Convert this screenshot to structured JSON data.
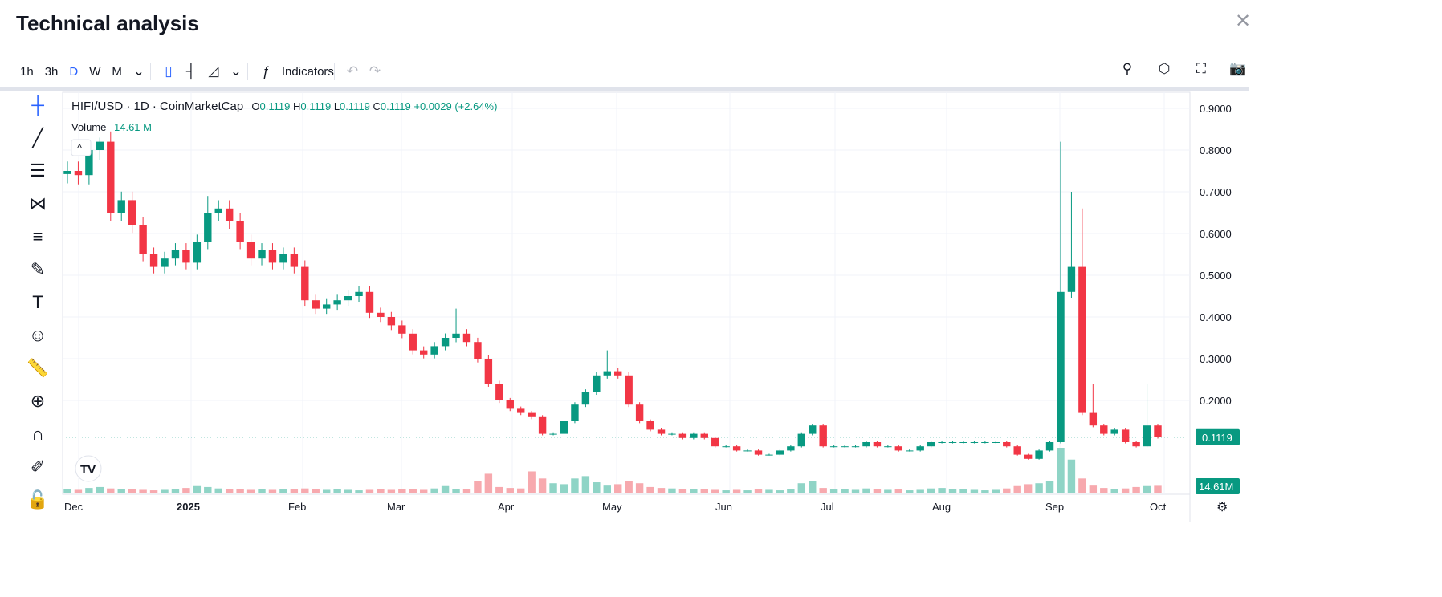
{
  "title": "Technical analysis",
  "toolbar": {
    "intervals": [
      "1h",
      "3h",
      "D",
      "W",
      "M"
    ],
    "active": "D",
    "indicators": "Indicators"
  },
  "legend": {
    "symbol": "HIFI/USD · 1D · CoinMarketCap",
    "o": "0.1119",
    "h": "0.1119",
    "l": "0.1119",
    "c": "0.1119",
    "change": "+0.0029 (+2.64%)",
    "volume_label": "Volume",
    "volume_value": "14.61 M"
  },
  "colors": {
    "up": "#089981",
    "down": "#f23645",
    "up_vol": "#8fd4c6",
    "down_vol": "#f7a9ae"
  },
  "chart_data": {
    "type": "candlestick",
    "x_ticks": [
      "Dec",
      "2025",
      "Feb",
      "Mar",
      "Apr",
      "May",
      "Jun",
      "Jul",
      "Aug",
      "Sep",
      "Oct"
    ],
    "y_ticks": [
      "0.9000",
      "0.8000",
      "0.7000",
      "0.6000",
      "0.5000",
      "0.4000",
      "0.3000",
      "0.2000"
    ],
    "ylim": [
      0.05,
      0.9
    ],
    "last_price": "0.1119",
    "last_volume": "14.61M",
    "closes": [
      0.75,
      0.74,
      0.8,
      0.82,
      0.65,
      0.68,
      0.62,
      0.55,
      0.52,
      0.54,
      0.56,
      0.53,
      0.58,
      0.65,
      0.66,
      0.63,
      0.58,
      0.54,
      0.56,
      0.53,
      0.55,
      0.52,
      0.44,
      0.42,
      0.43,
      0.44,
      0.45,
      0.46,
      0.41,
      0.4,
      0.38,
      0.36,
      0.32,
      0.31,
      0.33,
      0.35,
      0.36,
      0.34,
      0.3,
      0.24,
      0.2,
      0.18,
      0.17,
      0.16,
      0.12,
      0.12,
      0.15,
      0.19,
      0.22,
      0.26,
      0.27,
      0.26,
      0.19,
      0.15,
      0.13,
      0.12,
      0.12,
      0.11,
      0.12,
      0.11,
      0.09,
      0.09,
      0.08,
      0.08,
      0.07,
      0.07,
      0.08,
      0.09,
      0.12,
      0.14,
      0.09,
      0.09,
      0.09,
      0.09,
      0.1,
      0.09,
      0.09,
      0.08,
      0.08,
      0.09,
      0.1,
      0.1,
      0.1,
      0.1,
      0.1,
      0.1,
      0.1,
      0.09,
      0.07,
      0.06,
      0.08,
      0.1,
      0.46,
      0.52,
      0.17,
      0.14,
      0.12,
      0.13,
      0.1,
      0.09,
      0.14,
      0.1119
    ],
    "high_spikes": {
      "3": 0.83,
      "13": 0.69,
      "36": 0.42,
      "50": 0.32,
      "92": 0.82,
      "93": 0.7,
      "94": 0.66,
      "95": 0.24,
      "100": 0.24
    },
    "volumes_m": [
      8,
      6,
      10,
      12,
      9,
      7,
      8,
      6,
      5,
      6,
      7,
      10,
      14,
      12,
      9,
      8,
      7,
      6,
      7,
      6,
      8,
      7,
      9,
      8,
      6,
      7,
      6,
      5,
      6,
      7,
      6,
      8,
      7,
      6,
      9,
      14,
      8,
      7,
      25,
      40,
      12,
      10,
      9,
      45,
      30,
      20,
      18,
      30,
      35,
      22,
      15,
      18,
      25,
      20,
      12,
      10,
      9,
      8,
      7,
      8,
      6,
      5,
      6,
      5,
      7,
      6,
      5,
      8,
      20,
      25,
      10,
      8,
      7,
      6,
      9,
      8,
      6,
      7,
      5,
      6,
      9,
      10,
      8,
      7,
      6,
      5,
      6,
      9,
      14,
      18,
      20,
      25,
      95,
      70,
      30,
      15,
      10,
      8,
      9,
      12,
      14,
      14.61
    ]
  }
}
